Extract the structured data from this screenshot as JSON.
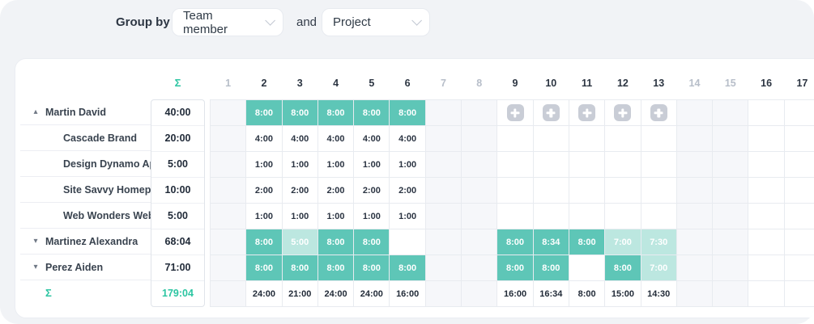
{
  "toolbar": {
    "group_by_label": "Group by",
    "and_label": "and",
    "dropdown_member": "Team member",
    "dropdown_project": "Project"
  },
  "grid": {
    "sum_symbol": "Σ",
    "days": [
      {
        "label": "1",
        "muted": true
      },
      {
        "label": "2",
        "muted": false
      },
      {
        "label": "3",
        "muted": false
      },
      {
        "label": "4",
        "muted": false
      },
      {
        "label": "5",
        "muted": false
      },
      {
        "label": "6",
        "muted": false
      },
      {
        "label": "7",
        "muted": true
      },
      {
        "label": "8",
        "muted": true
      },
      {
        "label": "9",
        "muted": false
      },
      {
        "label": "10",
        "muted": false
      },
      {
        "label": "11",
        "muted": false
      },
      {
        "label": "12",
        "muted": false
      },
      {
        "label": "13",
        "muted": false
      },
      {
        "label": "14",
        "muted": true
      },
      {
        "label": "15",
        "muted": true
      },
      {
        "label": "16",
        "muted": false
      },
      {
        "label": "17",
        "muted": false
      }
    ],
    "rows": [
      {
        "name": "Martin David",
        "total": "40:00",
        "kind": "group",
        "arrow": "▴",
        "cells": [
          {
            "t": "w"
          },
          {
            "t": "f",
            "v": "8:00"
          },
          {
            "t": "f",
            "v": "8:00"
          },
          {
            "t": "f",
            "v": "8:00"
          },
          {
            "t": "f",
            "v": "8:00"
          },
          {
            "t": "f",
            "v": "8:00"
          },
          {
            "t": "w"
          },
          {
            "t": "w"
          },
          {
            "t": "p"
          },
          {
            "t": "p"
          },
          {
            "t": "p"
          },
          {
            "t": "p"
          },
          {
            "t": "p"
          },
          {
            "t": "w"
          },
          {
            "t": "w"
          },
          {
            "t": ""
          },
          {
            "t": ""
          }
        ]
      },
      {
        "name": "Cascade Brand",
        "total": "20:00",
        "kind": "sub",
        "cells": [
          {
            "t": "w"
          },
          {
            "t": "n",
            "v": "4:00"
          },
          {
            "t": "n",
            "v": "4:00"
          },
          {
            "t": "n",
            "v": "4:00"
          },
          {
            "t": "n",
            "v": "4:00"
          },
          {
            "t": "n",
            "v": "4:00"
          },
          {
            "t": "w"
          },
          {
            "t": "w"
          },
          {
            "t": ""
          },
          {
            "t": ""
          },
          {
            "t": ""
          },
          {
            "t": ""
          },
          {
            "t": ""
          },
          {
            "t": "w"
          },
          {
            "t": "w"
          },
          {
            "t": ""
          },
          {
            "t": ""
          }
        ]
      },
      {
        "name": "Design Dynamo App",
        "total": "5:00",
        "kind": "sub",
        "cells": [
          {
            "t": "w"
          },
          {
            "t": "n",
            "v": "1:00"
          },
          {
            "t": "n",
            "v": "1:00"
          },
          {
            "t": "n",
            "v": "1:00"
          },
          {
            "t": "n",
            "v": "1:00"
          },
          {
            "t": "n",
            "v": "1:00"
          },
          {
            "t": "w"
          },
          {
            "t": "w"
          },
          {
            "t": ""
          },
          {
            "t": ""
          },
          {
            "t": ""
          },
          {
            "t": ""
          },
          {
            "t": ""
          },
          {
            "t": "w"
          },
          {
            "t": "w"
          },
          {
            "t": ""
          },
          {
            "t": ""
          }
        ]
      },
      {
        "name": "Site Savvy Homepa…",
        "total": "10:00",
        "kind": "sub",
        "cells": [
          {
            "t": "w"
          },
          {
            "t": "n",
            "v": "2:00"
          },
          {
            "t": "n",
            "v": "2:00"
          },
          {
            "t": "n",
            "v": "2:00"
          },
          {
            "t": "n",
            "v": "2:00"
          },
          {
            "t": "n",
            "v": "2:00"
          },
          {
            "t": "w"
          },
          {
            "t": "w"
          },
          {
            "t": ""
          },
          {
            "t": ""
          },
          {
            "t": ""
          },
          {
            "t": ""
          },
          {
            "t": ""
          },
          {
            "t": "w"
          },
          {
            "t": "w"
          },
          {
            "t": ""
          },
          {
            "t": ""
          }
        ]
      },
      {
        "name": "Web Wonders Web…",
        "total": "5:00",
        "kind": "sub",
        "cells": [
          {
            "t": "w"
          },
          {
            "t": "n",
            "v": "1:00"
          },
          {
            "t": "n",
            "v": "1:00"
          },
          {
            "t": "n",
            "v": "1:00"
          },
          {
            "t": "n",
            "v": "1:00"
          },
          {
            "t": "n",
            "v": "1:00"
          },
          {
            "t": "w"
          },
          {
            "t": "w"
          },
          {
            "t": ""
          },
          {
            "t": ""
          },
          {
            "t": ""
          },
          {
            "t": ""
          },
          {
            "t": ""
          },
          {
            "t": "w"
          },
          {
            "t": "w"
          },
          {
            "t": ""
          },
          {
            "t": ""
          }
        ]
      },
      {
        "name": "Martinez Alexandra",
        "total": "68:04",
        "kind": "group",
        "arrow": "▾",
        "cells": [
          {
            "t": "w"
          },
          {
            "t": "f",
            "v": "8:00"
          },
          {
            "t": "l",
            "v": "5:00"
          },
          {
            "t": "f",
            "v": "8:00"
          },
          {
            "t": "f",
            "v": "8:00"
          },
          {
            "t": ""
          },
          {
            "t": "w"
          },
          {
            "t": "w"
          },
          {
            "t": "f",
            "v": "8:00"
          },
          {
            "t": "f",
            "v": "8:34"
          },
          {
            "t": "f",
            "v": "8:00"
          },
          {
            "t": "l",
            "v": "7:00"
          },
          {
            "t": "l",
            "v": "7:30"
          },
          {
            "t": "w"
          },
          {
            "t": "w"
          },
          {
            "t": ""
          },
          {
            "t": ""
          }
        ]
      },
      {
        "name": "Perez Aiden",
        "total": "71:00",
        "kind": "group",
        "arrow": "▾",
        "cells": [
          {
            "t": "w"
          },
          {
            "t": "f",
            "v": "8:00"
          },
          {
            "t": "f",
            "v": "8:00"
          },
          {
            "t": "f",
            "v": "8:00"
          },
          {
            "t": "f",
            "v": "8:00"
          },
          {
            "t": "f",
            "v": "8:00"
          },
          {
            "t": "w"
          },
          {
            "t": "w"
          },
          {
            "t": "f",
            "v": "8:00"
          },
          {
            "t": "f",
            "v": "8:00"
          },
          {
            "t": ""
          },
          {
            "t": "f",
            "v": "8:00"
          },
          {
            "t": "l",
            "v": "7:00"
          },
          {
            "t": "w"
          },
          {
            "t": "w"
          },
          {
            "t": ""
          },
          {
            "t": ""
          }
        ]
      },
      {
        "name": "Σ",
        "total": "179:04",
        "kind": "footer",
        "cells": [
          {
            "t": "w"
          },
          {
            "t": "ft",
            "v": "24:00"
          },
          {
            "t": "ft",
            "v": "21:00"
          },
          {
            "t": "ft",
            "v": "24:00"
          },
          {
            "t": "ft",
            "v": "24:00"
          },
          {
            "t": "ft",
            "v": "16:00"
          },
          {
            "t": "w"
          },
          {
            "t": "w"
          },
          {
            "t": "ft",
            "v": "16:00"
          },
          {
            "t": "ft",
            "v": "16:34"
          },
          {
            "t": "ft",
            "v": "8:00"
          },
          {
            "t": "ft",
            "v": "15:00"
          },
          {
            "t": "ft",
            "v": "14:30"
          },
          {
            "t": "w"
          },
          {
            "t": "w"
          },
          {
            "t": ""
          },
          {
            "t": ""
          }
        ]
      }
    ]
  },
  "icons": {
    "dropdown_chevron": "chevron-down-icon",
    "group_expanded": "triangle-up-icon",
    "group_collapsed": "triangle-down-icon",
    "add_time": "plus-icon"
  },
  "colors": {
    "accent_green": "#2cc5a2",
    "cell_filled": "#5ec6b7",
    "cell_partial": "#bce7e0",
    "weekend_bg": "#f6f7fa",
    "plus_button": "#c9cdd6",
    "page_bg": "#f1f3f6"
  }
}
